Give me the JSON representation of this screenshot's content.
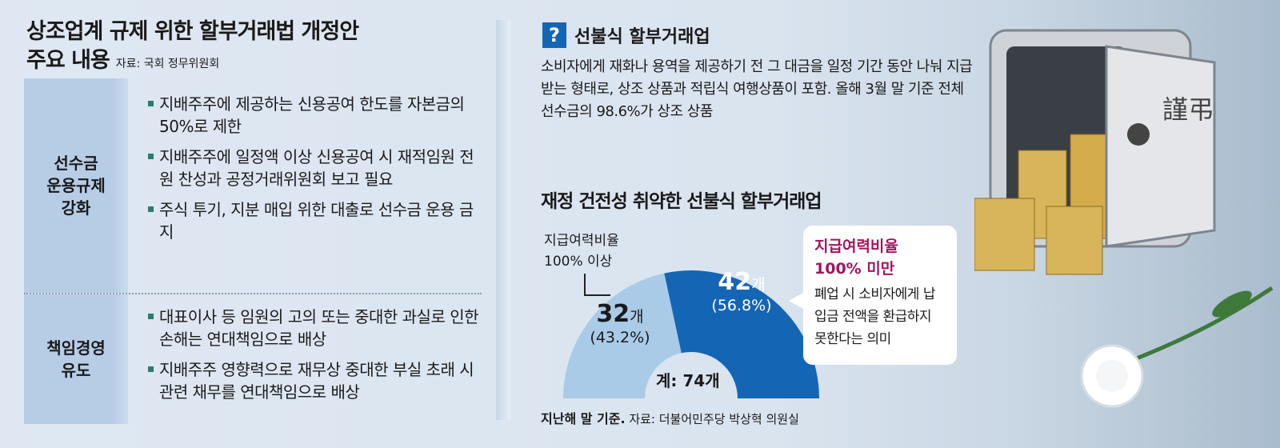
{
  "left": {
    "title_line1": "상조업계 규제 위한 할부거래법 개정안",
    "title_line2": "주요 내용",
    "source": "자료: 국회 정무위원회",
    "sections": [
      {
        "category": "선수금\n운용규제\n강화",
        "items": [
          "지배주주에 제공하는 신용공여 한도를 자본금의 50%로 제한",
          "지배주주에 일정액 이상 신용공여 시 재적임원 전원 찬성과 공정거래위원회 보고 필요",
          "주식 투기, 지분 매입 위한 대출로 선수금 운용 금지"
        ]
      },
      {
        "category": "책임경영\n유도",
        "items": [
          "대표이사 등 임원의 고의 또는 중대한 과실로 인한 손해는 연대책임으로 배상",
          "지배주주 영향력으로 재무상 중대한 부실 초래 시 관련 채무를 연대책임으로 배상"
        ]
      }
    ]
  },
  "right": {
    "q_icon": "?",
    "q_title": "선불식 할부거래업",
    "description": "소비자에게 재화나 용역을 제공하기 전 그 대금을 일정 기간 동안 나눠 지급받는 형태로, 상조 상품과 적립식 여행상품이 포함. 올해 3월 말 기준 전체 선수금의 98.6%가 상조 상품",
    "bubble_title": "지급여력비율\n100% 미만",
    "bubble_text": "폐업 시 소비자에게 납입금 전액을 환급하지 못한다는 의미",
    "footer_bold": "지난해 말 기준.",
    "footer_source": "자료: 더불어민주당 박상혁 의원실",
    "safe_text": "謹弔"
  },
  "chart_data": {
    "type": "pie",
    "title": "재정 건전성 취약한 선불식 할부거래업",
    "variant": "half-donut",
    "categories": [
      "지급여력비율 100% 이상",
      "지급여력비율 100% 미만"
    ],
    "values": [
      32,
      42
    ],
    "percent": [
      "43.2%",
      "56.8%"
    ],
    "count_labels": [
      "32",
      "42"
    ],
    "unit": "개",
    "pct_labels": [
      "(43.2%)",
      "(56.8%)"
    ],
    "total_label": "계: 74개",
    "colors": [
      "#a9cbe8",
      "#1565b5"
    ]
  }
}
